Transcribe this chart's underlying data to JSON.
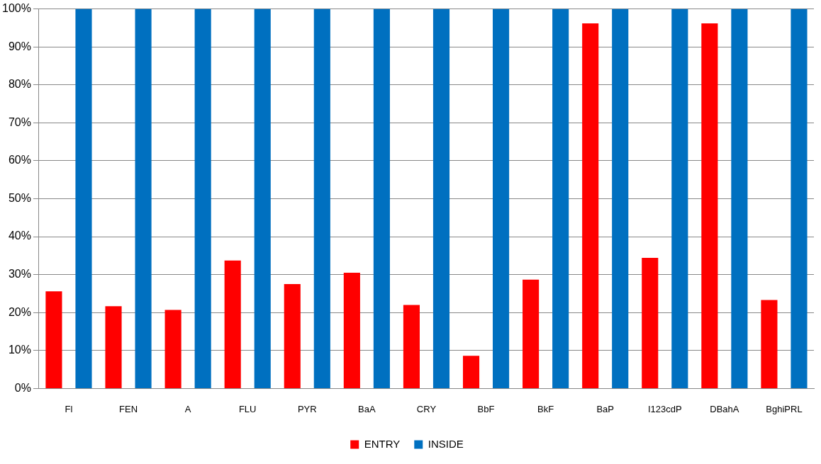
{
  "chart_data": {
    "type": "bar",
    "categories": [
      "Fl",
      "FEN",
      "A",
      "FLU",
      "PYR",
      "BaA",
      "CRY",
      "BbF",
      "BkF",
      "BaP",
      "I123cdP",
      "DBahA",
      "BghiPRL"
    ],
    "series": [
      {
        "name": "ENTRY",
        "color": "#ff0000",
        "values": [
          25.6,
          21.7,
          20.7,
          33.7,
          27.5,
          30.5,
          22,
          8.6,
          28.7,
          96.2,
          34.4,
          96.2,
          23.3
        ]
      },
      {
        "name": "INSIDE",
        "color": "#0070c0",
        "values": [
          100,
          100,
          100,
          100,
          100,
          100,
          100,
          100,
          100,
          100,
          100,
          100,
          100
        ]
      }
    ],
    "ylim": [
      0,
      100
    ],
    "yticks": [
      {
        "value": 0,
        "label": "0%"
      },
      {
        "value": 10,
        "label": "10%"
      },
      {
        "value": 20,
        "label": "20%"
      },
      {
        "value": 30,
        "label": "30%"
      },
      {
        "value": 40,
        "label": "40%"
      },
      {
        "value": 50,
        "label": "50%"
      },
      {
        "value": 60,
        "label": "60%"
      },
      {
        "value": 70,
        "label": "70%"
      },
      {
        "value": 80,
        "label": "80%"
      },
      {
        "value": 90,
        "label": "90%"
      },
      {
        "value": 100,
        "label": "100%"
      }
    ],
    "grid": "y",
    "legend": "bottom"
  }
}
